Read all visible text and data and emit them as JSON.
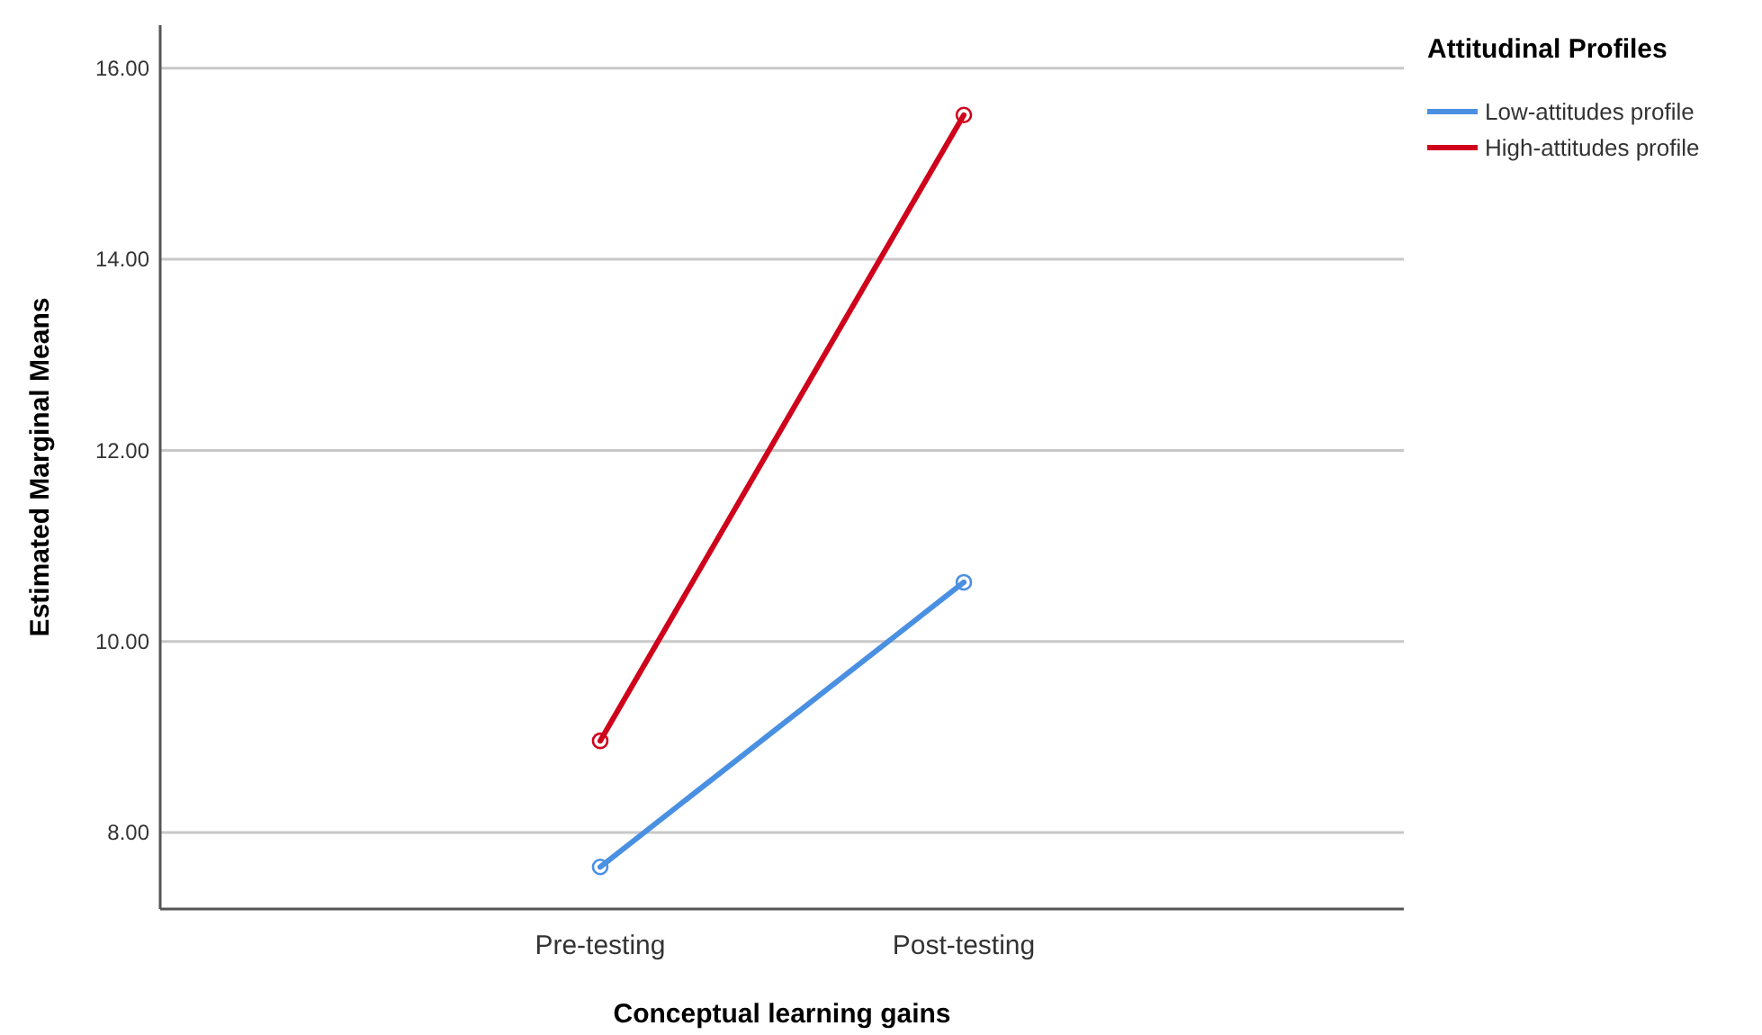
{
  "chart_data": {
    "type": "line",
    "xlabel": "Conceptual learning gains",
    "ylabel": "Estimated Marginal Means",
    "legend_title": "Attitudinal Profiles",
    "categories": [
      "Pre-testing",
      "Post-testing"
    ],
    "series": [
      {
        "name": "Low-attitudes profile",
        "color": "#4a90e2",
        "values": [
          7.64,
          10.62
        ]
      },
      {
        "name": "High-attitudes profile",
        "color": "#d0021b",
        "values": [
          8.96,
          15.51
        ]
      }
    ],
    "ylim": [
      7.2,
      16.45
    ],
    "yticks": [
      {
        "value": 8,
        "label": "8.00"
      },
      {
        "value": 10,
        "label": "10.00"
      },
      {
        "value": 12,
        "label": "12.00"
      },
      {
        "value": 14,
        "label": "14.00"
      },
      {
        "value": 16,
        "label": "16.00"
      }
    ],
    "grid": "y",
    "legend": "top right",
    "marker": "circle",
    "line_style": "solid"
  }
}
